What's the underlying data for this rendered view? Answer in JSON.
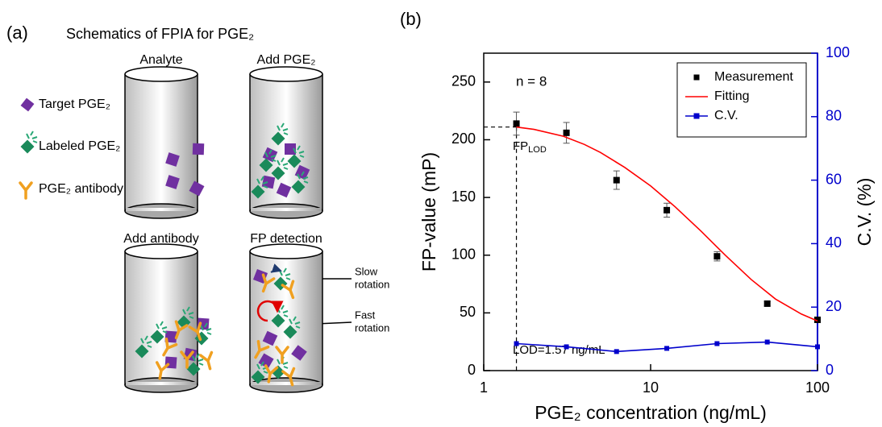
{
  "schematic": {
    "panel_label": "(a)",
    "title": "Schematics of FPIA for PGE₂",
    "legend": [
      "Target PGE₂",
      "Labeled PGE₂",
      "PGE₂ antibody"
    ],
    "tubes": [
      "Analyte",
      "Add PGE₂",
      "Add antibody",
      "FP detection"
    ],
    "slow_rotation": [
      "Slow",
      "rotation"
    ],
    "fast_rotation": [
      "Fast",
      "rotation"
    ]
  },
  "chart_data": {
    "type": "line",
    "panel_label": "(b)",
    "xlabel": "PGE₂ concentration (ng/mL)",
    "ylabel": "FP-value (mP)",
    "y2label": "C.V. (%)",
    "xscale": "log",
    "xlim": [
      1,
      100
    ],
    "xticks": [
      1,
      10,
      100
    ],
    "ylim": [
      0,
      275
    ],
    "yticks": [
      0,
      50,
      100,
      150,
      200,
      250
    ],
    "y2lim": [
      0,
      100
    ],
    "y2ticks": [
      0,
      20,
      40,
      60,
      80,
      100
    ],
    "y2color": "#0000cc",
    "legend_position": "upper right",
    "annotations": {
      "n": "n = 8",
      "fp_lod": {
        "main": "FP",
        "sub": "LOD"
      },
      "lod_text": "LOD=1.57 ng/mL"
    },
    "lod": 1.57,
    "fp_lod": 211,
    "series": [
      {
        "name": "Measurement",
        "color": "#000000",
        "style": "markers",
        "x": [
          1.57,
          3.13,
          6.25,
          12.5,
          25,
          50,
          100
        ],
        "values": [
          214,
          206,
          165,
          139,
          99,
          58,
          44
        ],
        "errors": [
          10,
          9,
          8,
          6,
          4,
          2,
          2
        ]
      },
      {
        "name": "Fitting",
        "color": "#ff0000",
        "style": "line",
        "x": [
          1.57,
          2,
          3,
          4,
          5,
          7,
          10,
          14,
          20,
          28,
          40,
          56,
          80,
          100
        ],
        "values": [
          211,
          209,
          203,
          196,
          189,
          176,
          160,
          142,
          121,
          100,
          79,
          62,
          49,
          43
        ]
      },
      {
        "name": "C.V.",
        "color": "#0000cc",
        "style": "line-markers",
        "axis": "y2",
        "x": [
          1.57,
          3.13,
          6.25,
          12.5,
          25,
          50,
          100
        ],
        "values": [
          8.5,
          7.5,
          6,
          7,
          8.5,
          9,
          7.5
        ]
      }
    ]
  }
}
